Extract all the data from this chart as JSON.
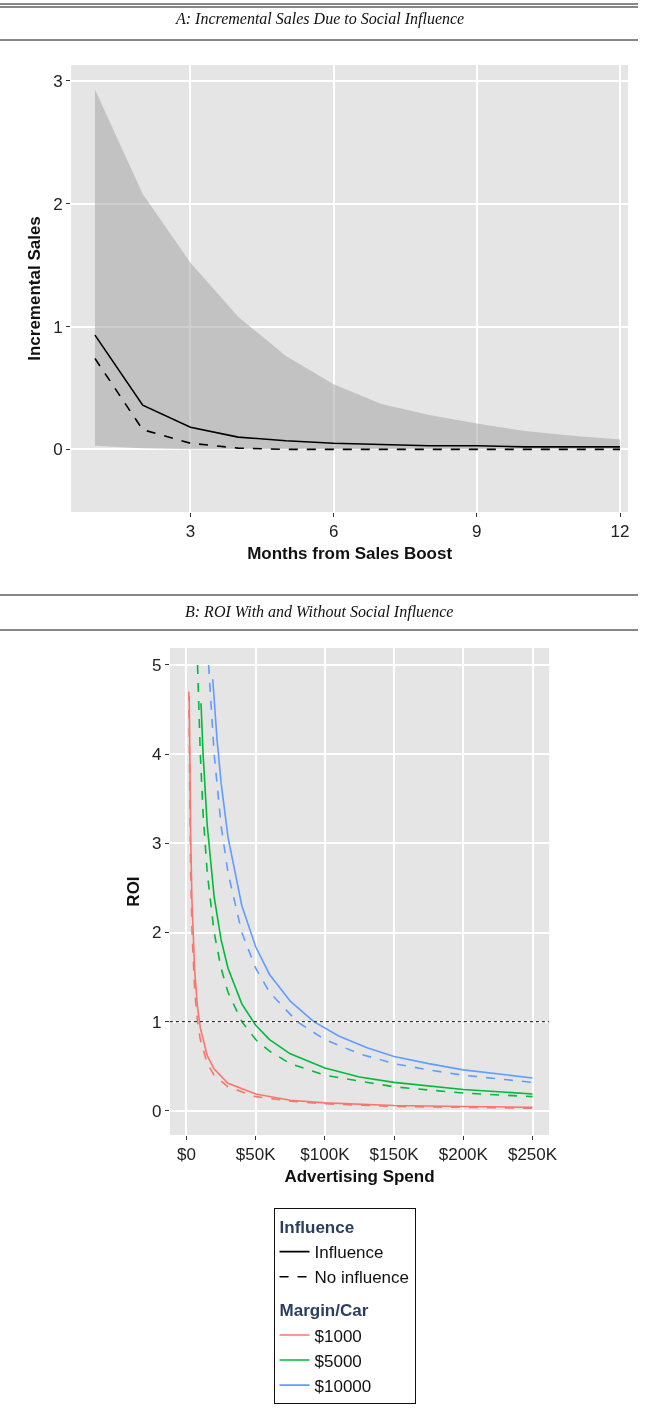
{
  "chart_data": [
    {
      "type": "line",
      "title": "A: Incremental Sales Due to Social Influence",
      "xlabel": "Months from Sales Boost",
      "ylabel": "Incremental Sales",
      "xlim": [
        0.5,
        12.17
      ],
      "xticks": [
        3,
        6,
        9,
        12
      ],
      "ylim": [
        -0.51,
        3.13
      ],
      "yticks": [
        0,
        1,
        2,
        3
      ],
      "grid": true,
      "legend": false,
      "x": [
        1,
        2,
        3,
        4,
        5,
        6,
        7,
        8,
        9,
        10,
        11,
        12
      ],
      "series": [
        {
          "color": "#000000",
          "line_style": "solid",
          "values": [
            0.93,
            0.36,
            0.18,
            0.1,
            0.07,
            0.05,
            0.04,
            0.03,
            0.03,
            0.02,
            0.02,
            0.02
          ],
          "lower": [
            0.03,
            0.01,
            0,
            0,
            0,
            0,
            0,
            0,
            0,
            0,
            0,
            0
          ],
          "upper": [
            2.93,
            2.08,
            1.52,
            1.08,
            0.76,
            0.53,
            0.37,
            0.28,
            0.21,
            0.15,
            0.11,
            0.08
          ]
        },
        {
          "color": "#000000",
          "line_style": "dashed",
          "values": [
            0.74,
            0.16,
            0.05,
            0.01,
            0,
            0,
            0,
            0,
            0,
            0,
            0,
            0
          ]
        }
      ]
    },
    {
      "type": "line",
      "title": "B: ROI With and Without Social Influence",
      "xlabel": "Advertising Spend",
      "ylabel": "ROI",
      "xlim": [
        -12000,
        262000
      ],
      "xticks": [
        {
          "value": 0,
          "label": "$0"
        },
        {
          "value": 50000,
          "label": "$50K"
        },
        {
          "value": 100000,
          "label": "$100K"
        },
        {
          "value": 150000,
          "label": "$150K"
        },
        {
          "value": 200000,
          "label": "$200K"
        },
        {
          "value": 250000,
          "label": "$250K"
        }
      ],
      "ylim": [
        -0.27,
        5.19
      ],
      "yticks": [
        0,
        1,
        2,
        3,
        4,
        5
      ],
      "grid": true,
      "legend": "bottom",
      "legend_title": [
        "Influence",
        "Margin/Car"
      ],
      "ref_lines": [
        {
          "axis": "y",
          "value": 1,
          "label": null,
          "color": "#333333",
          "line_style": "dotted"
        }
      ],
      "series": [
        {
          "name": "Influence",
          "color": "#000000",
          "line_style": "solid"
        },
        {
          "name": "No influence",
          "color": "#000000",
          "line_style": "dashed"
        },
        {
          "name": "$1000",
          "color": "#f8766d",
          "line_style": "solid",
          "x": [
            2000,
            3000,
            4000,
            6000,
            8000,
            10000,
            15000,
            20000,
            30000,
            50000,
            75000,
            100000,
            150000,
            200000,
            250000
          ],
          "values": [
            4.65,
            3.1,
            2.33,
            1.55,
            1.16,
            0.93,
            0.62,
            0.47,
            0.31,
            0.19,
            0.12,
            0.09,
            0.06,
            0.05,
            0.04
          ]
        },
        {
          "name": "$5000",
          "color": "#00ba38",
          "line_style": "solid",
          "x": [
            10500,
            12000,
            15000,
            20000,
            25000,
            30000,
            40000,
            50000,
            60000,
            75000,
            100000,
            125000,
            150000,
            200000,
            250000
          ],
          "values": [
            4.57,
            4.0,
            3.2,
            2.4,
            1.92,
            1.6,
            1.2,
            0.96,
            0.8,
            0.64,
            0.48,
            0.38,
            0.32,
            0.24,
            0.19
          ]
        },
        {
          "name": "$10000",
          "color": "#619cff",
          "line_style": "solid",
          "x": [
            19000,
            22000,
            25000,
            30000,
            40000,
            50000,
            60000,
            75000,
            92000,
            110000,
            130000,
            150000,
            175000,
            200000,
            250000
          ],
          "values": [
            4.84,
            4.18,
            3.68,
            3.07,
            2.3,
            1.84,
            1.53,
            1.23,
            1.0,
            0.84,
            0.71,
            0.61,
            0.53,
            0.46,
            0.37
          ]
        },
        {
          "color": "#f8766d",
          "line_style": "dashed",
          "x": [
            1700,
            3000,
            4000,
            6000,
            8000,
            10000,
            15000,
            20000,
            30000,
            50000,
            75000,
            100000,
            150000,
            200000,
            250000
          ],
          "values": [
            4.7,
            2.67,
            2.0,
            1.33,
            1.0,
            0.8,
            0.53,
            0.4,
            0.27,
            0.16,
            0.11,
            0.08,
            0.05,
            0.04,
            0.03
          ]
        },
        {
          "color": "#00ba38",
          "line_style": "dashed",
          "x": [
            8000,
            10000,
            12000,
            15000,
            20000,
            25000,
            30000,
            40000,
            50000,
            60000,
            75000,
            100000,
            150000,
            200000,
            250000
          ],
          "values": [
            5.0,
            4.0,
            3.33,
            2.67,
            2.0,
            1.6,
            1.33,
            1.0,
            0.8,
            0.67,
            0.53,
            0.4,
            0.27,
            0.2,
            0.16
          ]
        },
        {
          "color": "#619cff",
          "line_style": "dashed",
          "x": [
            16000,
            20000,
            25000,
            30000,
            40000,
            50000,
            60000,
            80000,
            100000,
            125000,
            150000,
            175000,
            200000,
            250000
          ],
          "values": [
            5.0,
            4.0,
            3.2,
            2.67,
            2.0,
            1.6,
            1.33,
            1.0,
            0.8,
            0.64,
            0.53,
            0.46,
            0.4,
            0.32
          ]
        }
      ]
    }
  ]
}
